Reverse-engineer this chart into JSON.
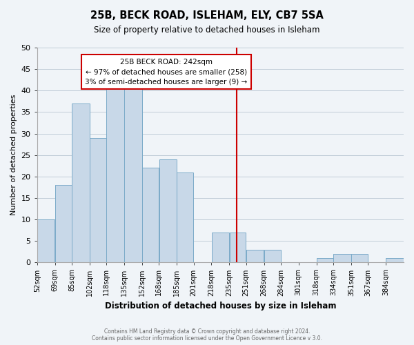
{
  "title": "25B, BECK ROAD, ISLEHAM, ELY, CB7 5SA",
  "subtitle": "Size of property relative to detached houses in Isleham",
  "xlabel": "Distribution of detached houses by size in Isleham",
  "ylabel": "Number of detached properties",
  "bin_left_edges": [
    52,
    69,
    85,
    102,
    118,
    135,
    152,
    168,
    185,
    201,
    218,
    235,
    251,
    268,
    284,
    301,
    318,
    334,
    351,
    367,
    384
  ],
  "bar_heights": [
    10,
    18,
    37,
    29,
    41,
    41,
    22,
    24,
    21,
    0,
    7,
    7,
    3,
    3,
    0,
    0,
    1,
    2,
    2,
    0,
    1
  ],
  "bar_color": "#c8d8e8",
  "bar_edgecolor": "#7aaac8",
  "grid_color": "#c0ccd8",
  "vline_x": 242,
  "vline_color": "#cc0000",
  "ylim": [
    0,
    50
  ],
  "yticks": [
    0,
    5,
    10,
    15,
    20,
    25,
    30,
    35,
    40,
    45,
    50
  ],
  "tick_labels": [
    "52sqm",
    "69sqm",
    "85sqm",
    "102sqm",
    "118sqm",
    "135sqm",
    "152sqm",
    "168sqm",
    "185sqm",
    "201sqm",
    "218sqm",
    "235sqm",
    "251sqm",
    "268sqm",
    "284sqm",
    "301sqm",
    "318sqm",
    "334sqm",
    "351sqm",
    "367sqm",
    "384sqm"
  ],
  "annotation_title": "25B BECK ROAD: 242sqm",
  "annotation_line1": "← 97% of detached houses are smaller (258)",
  "annotation_line2": "3% of semi-detached houses are larger (9) →",
  "footer1": "Contains HM Land Registry data © Crown copyright and database right 2024.",
  "footer2": "Contains public sector information licensed under the Open Government Licence v 3.0.",
  "background_color": "#f0f4f8"
}
